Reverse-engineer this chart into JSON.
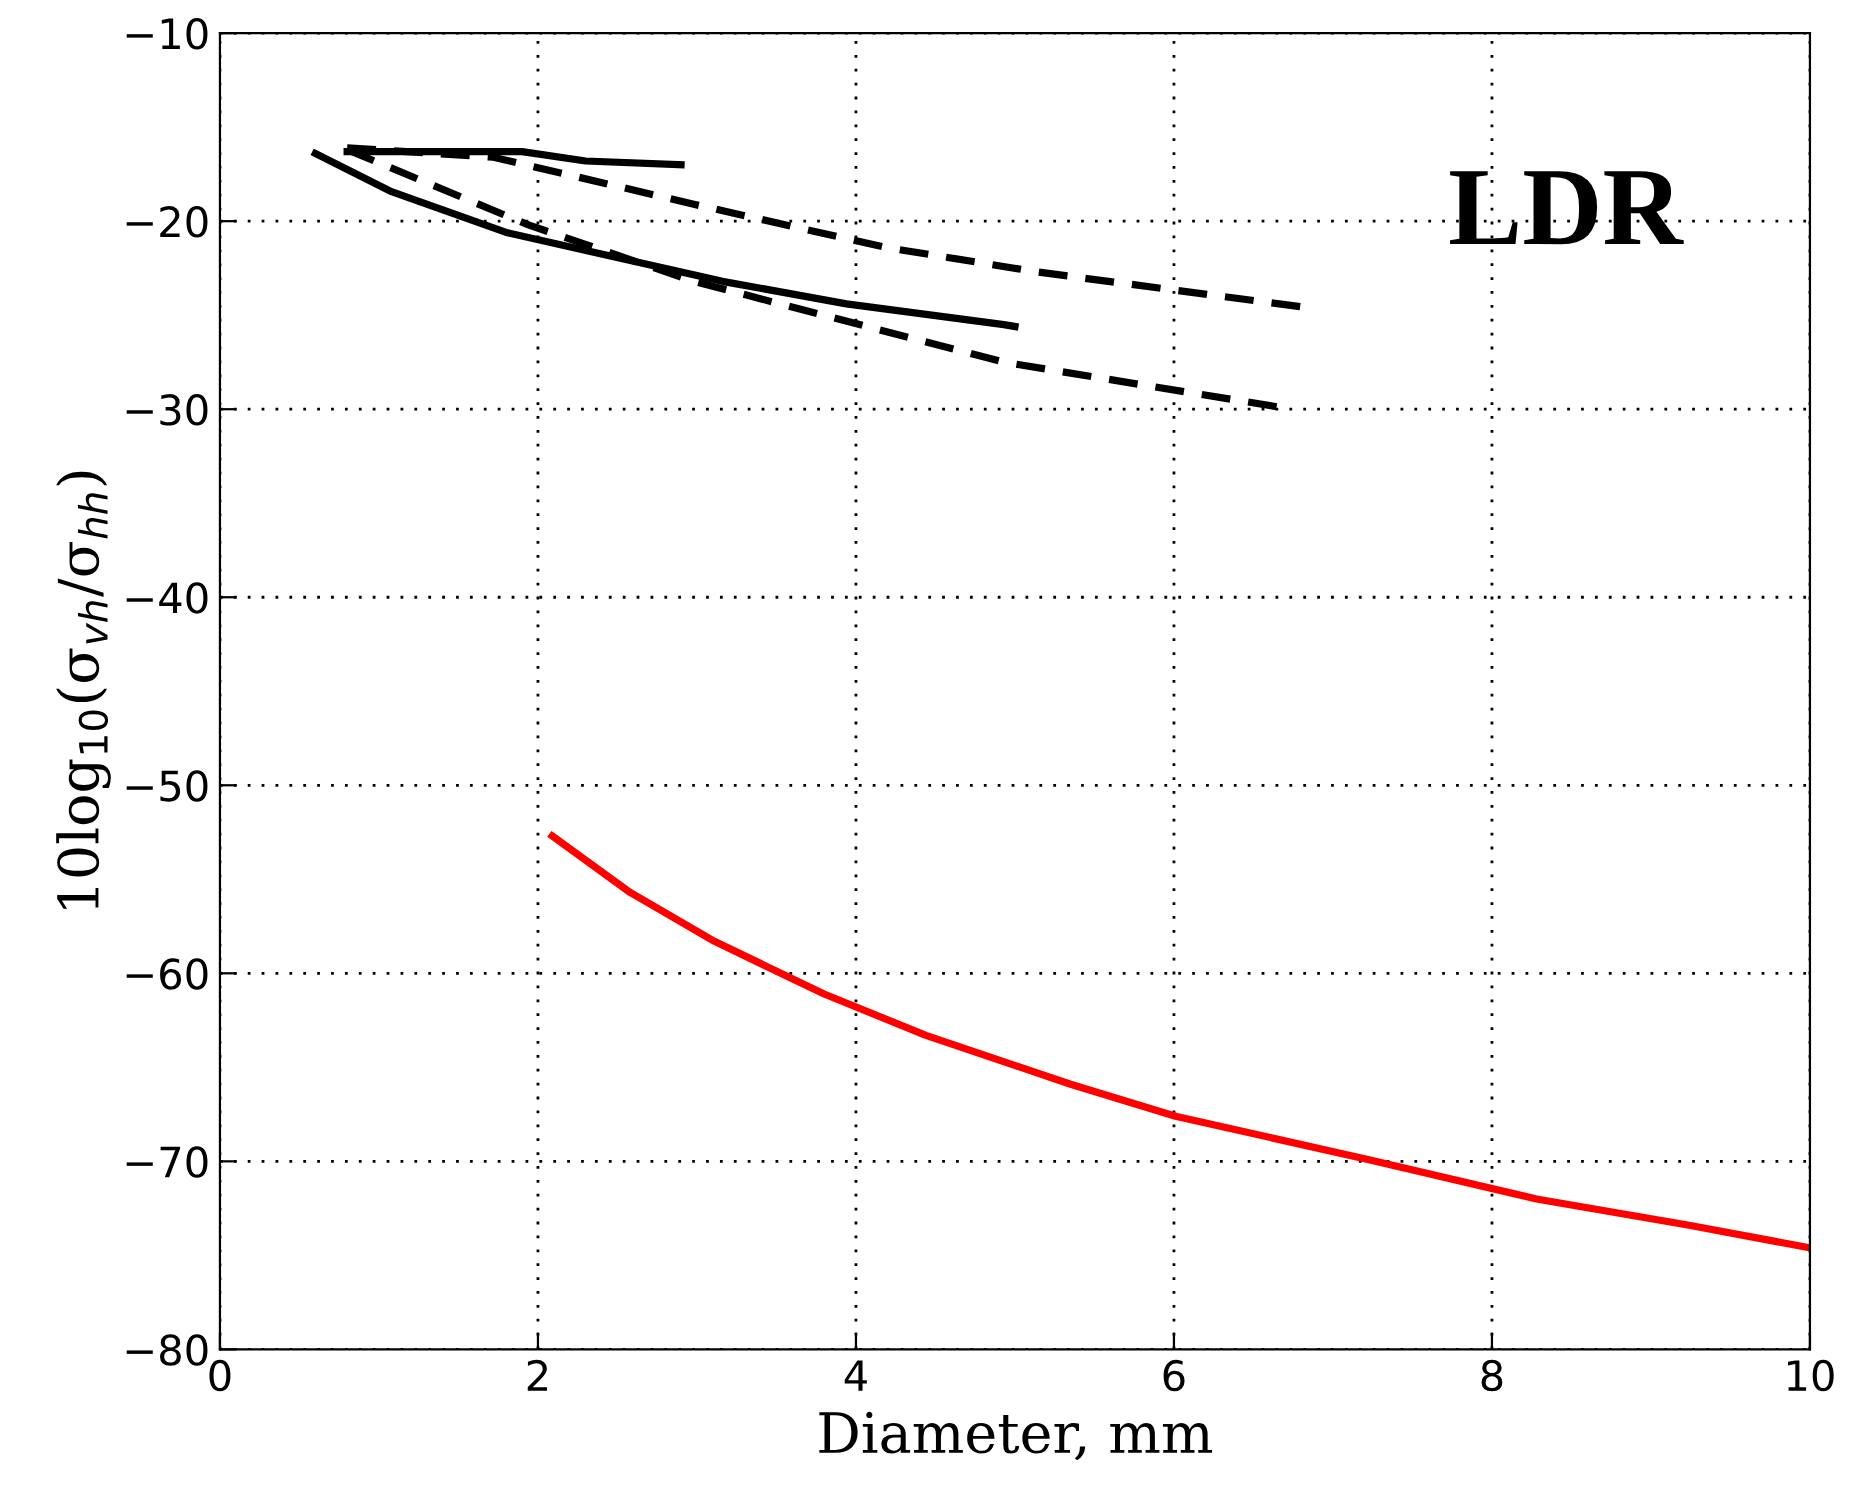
{
  "chart_data": {
    "type": "line",
    "xlabel": "Diameter, mm",
    "ylabel": "10log$_{10}$(σ$_{vh}$/σ$_{hh}$)",
    "annotations": [
      "LDR"
    ],
    "xlim": [
      0,
      10
    ],
    "xticks": [
      0,
      2,
      4,
      6,
      8,
      10
    ],
    "ylim": [
      -80,
      -10
    ],
    "yticks": [
      -80,
      -70,
      -60,
      -50,
      -40,
      -30,
      -20,
      -10
    ],
    "grid": true,
    "marker": "none",
    "series": [
      {
        "color": "#000000",
        "line_style": "solid",
        "x": [
          0.8,
          1.9,
          2.3,
          2.9
        ],
        "values": [
          -16.3,
          -16.3,
          -16.8,
          -17.0
        ]
      },
      {
        "color": "#000000",
        "line_style": "solid",
        "x": [
          0.6,
          1.07,
          1.8,
          3.16,
          3.94,
          4.93,
          5.0
        ],
        "values": [
          -16.4,
          -18.4,
          -20.6,
          -23.2,
          -24.4,
          -25.5,
          -25.6
        ]
      },
      {
        "color": "#000000",
        "line_style": "dashed",
        "x": [
          0.8,
          1.72,
          2.98,
          4.19,
          5.14,
          6.84
        ],
        "values": [
          -16.1,
          -16.6,
          -19.1,
          -21.4,
          -22.7,
          -24.6
        ]
      },
      {
        "color": "#000000",
        "line_style": "dashed",
        "x": [
          0.8,
          1.94,
          2.98,
          4.93,
          5.58,
          6.67
        ],
        "values": [
          -16.2,
          -20.2,
          -23.2,
          -27.5,
          -28.4,
          -29.9
        ]
      },
      {
        "color": "#ff0000",
        "line_style": "solid",
        "x": [
          2.09,
          2.58,
          3.11,
          3.8,
          4.44,
          5.35,
          6.01,
          7.22,
          8.28,
          9.24,
          10.0
        ],
        "values": [
          -52.7,
          -55.7,
          -58.3,
          -61.1,
          -63.3,
          -65.9,
          -67.6,
          -69.9,
          -72.0,
          -73.4,
          -74.6
        ]
      }
    ]
  }
}
